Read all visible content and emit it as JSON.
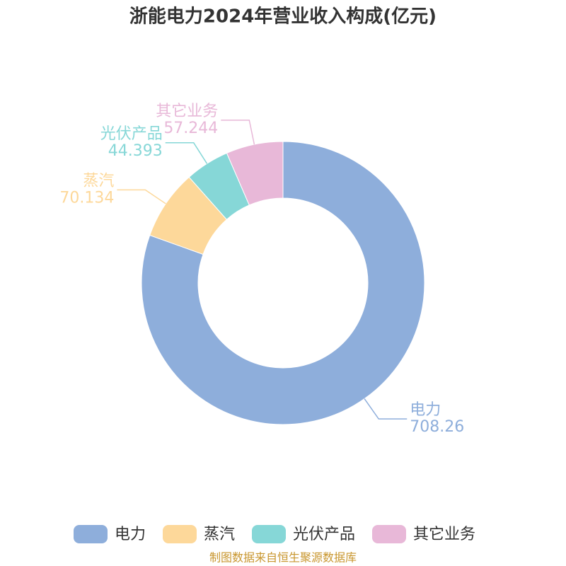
{
  "chart_data": {
    "type": "donut",
    "title": "浙能电力2024年营业收入构成(亿元)",
    "categories": [
      "电力",
      "蒸汽",
      "光伏产品",
      "其它业务"
    ],
    "values": [
      708.26,
      70.134,
      44.393,
      57.244
    ],
    "colors": [
      "#8eaedb",
      "#fdd89a",
      "#86d7d7",
      "#e8b8d8"
    ],
    "legend": "bottom",
    "source": "制图数据来自恒生聚源数据库"
  }
}
